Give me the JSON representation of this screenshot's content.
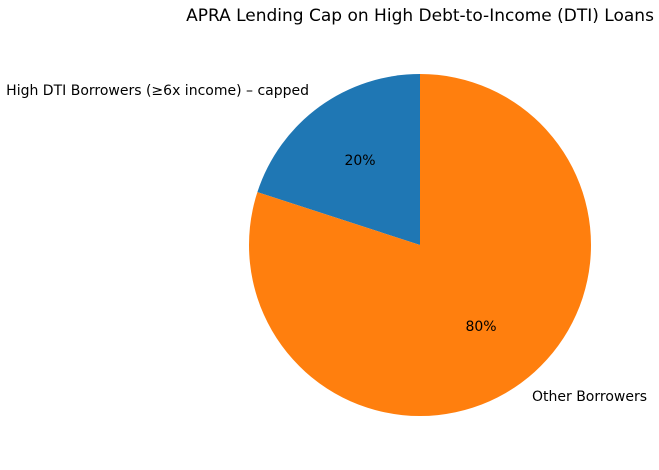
{
  "chart_data": {
    "type": "pie",
    "title": "APRA Lending Cap on High Debt-to-Income (DTI) Loans",
    "slices": [
      {
        "label": "High DTI Borrowers (≥6x income) – capped",
        "value": 20,
        "pct_label": "20%",
        "color": "#1f77b4"
      },
      {
        "label": "Other Borrowers",
        "value": 80,
        "pct_label": "80%",
        "color": "#ff7f0e"
      }
    ],
    "start_angle_deg": 90,
    "counterclockwise": true,
    "legend": "none",
    "background": "#ffffff",
    "text_color": "#000000"
  }
}
